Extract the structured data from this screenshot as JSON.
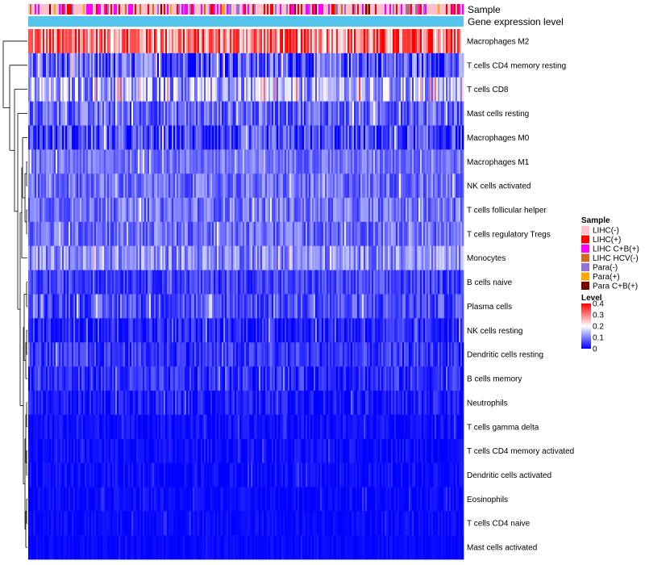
{
  "chart_data": {
    "type": "heatmap",
    "title": "",
    "annotation_tracks": [
      "Sample",
      "Gene expression level"
    ],
    "rows": [
      "Macrophages M2",
      "T cells CD4 memory resting",
      "T cells CD8",
      "Mast cells resting",
      "Macrophages M0",
      "Macrophages M1",
      "NK cells activated",
      "T cells follicular helper",
      "T cells regulatory  Tregs",
      "Monocytes",
      "B cells naive",
      "Plasma cells",
      "NK cells resting",
      "Dendritic cells resting",
      "B cells memory",
      "Neutrophils",
      "T cells gamma delta",
      "T cells CD4 memory activated",
      "Dendritic cells activated",
      "Eosinophils",
      "T cells CD4 naive",
      "Mast cells activated"
    ],
    "row_mean_level": [
      0.3,
      0.07,
      0.13,
      0.08,
      0.05,
      0.09,
      0.085,
      0.09,
      0.085,
      0.11,
      0.05,
      0.06,
      0.03,
      0.04,
      0.035,
      0.02,
      0.012,
      0.01,
      0.01,
      0.008,
      0.008,
      0.006
    ],
    "row_variability": [
      0.12,
      0.08,
      0.09,
      0.06,
      0.07,
      0.04,
      0.05,
      0.05,
      0.05,
      0.06,
      0.04,
      0.05,
      0.04,
      0.04,
      0.04,
      0.03,
      0.02,
      0.02,
      0.02,
      0.015,
      0.015,
      0.01
    ],
    "n_columns": 270,
    "sample_legend": {
      "title": "Sample",
      "entries": [
        {
          "label": "LIHC(-)",
          "color": "#FFC0CB"
        },
        {
          "label": "LIHC(+)",
          "color": "#FF0000"
        },
        {
          "label": "LIHC C+B(+)",
          "color": "#FF00FF"
        },
        {
          "label": "LIHC HCV(-)",
          "color": "#D2691E"
        },
        {
          "label": "Para(-)",
          "color": "#9370DB"
        },
        {
          "label": "Para(+)",
          "color": "#FFA500"
        },
        {
          "label": "Para C+B(+)",
          "color": "#800000"
        }
      ],
      "weights": [
        0.5,
        0.12,
        0.2,
        0.05,
        0.08,
        0.03,
        0.02
      ]
    },
    "level_legend": {
      "title": "Level",
      "ticks": [
        "0.4",
        "0.3",
        "0.2",
        "0.1",
        "0"
      ],
      "range": [
        0,
        0.4
      ],
      "color_stops": [
        "#0000FF",
        "#FFFFFF",
        "#FF0000"
      ]
    },
    "expression_bar_color": "#56C5EE"
  }
}
